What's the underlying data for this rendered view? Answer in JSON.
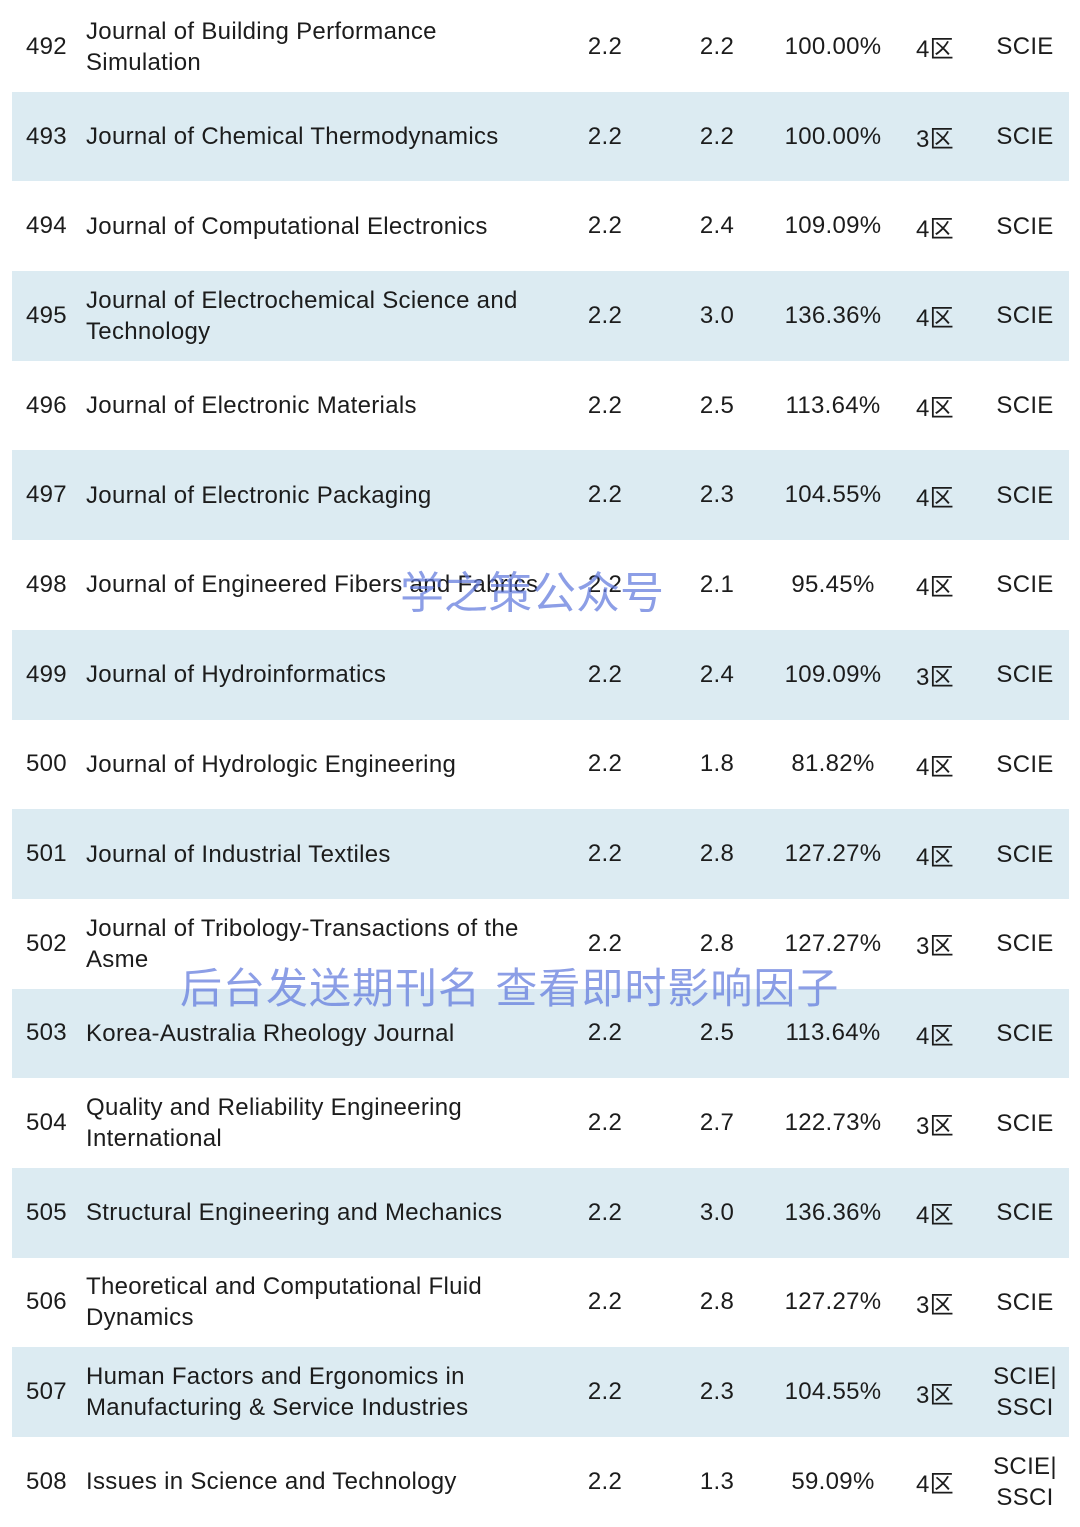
{
  "rows": [
    {
      "rank": "492",
      "name": "Journal of Building Performance Simulation",
      "if": "2.2",
      "pred": "2.2",
      "pct": "100.00%",
      "zone": "4区",
      "index": "SCIE"
    },
    {
      "rank": "493",
      "name": "Journal of Chemical Thermodynamics",
      "if": "2.2",
      "pred": "2.2",
      "pct": "100.00%",
      "zone": "3区",
      "index": "SCIE"
    },
    {
      "rank": "494",
      "name": "Journal of Computational Electronics",
      "if": "2.2",
      "pred": "2.4",
      "pct": "109.09%",
      "zone": "4区",
      "index": "SCIE"
    },
    {
      "rank": "495",
      "name": "Journal of Electrochemical Science and Technology",
      "if": "2.2",
      "pred": "3.0",
      "pct": "136.36%",
      "zone": "4区",
      "index": "SCIE"
    },
    {
      "rank": "496",
      "name": "Journal of Electronic Materials",
      "if": "2.2",
      "pred": "2.5",
      "pct": "113.64%",
      "zone": "4区",
      "index": "SCIE"
    },
    {
      "rank": "497",
      "name": "Journal of Electronic Packaging",
      "if": "2.2",
      "pred": "2.3",
      "pct": "104.55%",
      "zone": "4区",
      "index": "SCIE"
    },
    {
      "rank": "498",
      "name": "Journal of Engineered Fibers and Fabrics",
      "if": "2.2",
      "pred": "2.1",
      "pct": "95.45%",
      "zone": "4区",
      "index": "SCIE"
    },
    {
      "rank": "499",
      "name": "Journal of Hydroinformatics",
      "if": "2.2",
      "pred": "2.4",
      "pct": "109.09%",
      "zone": "3区",
      "index": "SCIE"
    },
    {
      "rank": "500",
      "name": "Journal of Hydrologic Engineering",
      "if": "2.2",
      "pred": "1.8",
      "pct": "81.82%",
      "zone": "4区",
      "index": "SCIE"
    },
    {
      "rank": "501",
      "name": "Journal of Industrial Textiles",
      "if": "2.2",
      "pred": "2.8",
      "pct": "127.27%",
      "zone": "4区",
      "index": "SCIE"
    },
    {
      "rank": "502",
      "name": "Journal of Tribology-Transactions of the Asme",
      "if": "2.2",
      "pred": "2.8",
      "pct": "127.27%",
      "zone": "3区",
      "index": "SCIE"
    },
    {
      "rank": "503",
      "name": "Korea-Australia Rheology Journal",
      "if": "2.2",
      "pred": "2.5",
      "pct": "113.64%",
      "zone": "4区",
      "index": "SCIE"
    },
    {
      "rank": "504",
      "name": "Quality and Reliability Engineering International",
      "if": "2.2",
      "pred": "2.7",
      "pct": "122.73%",
      "zone": "3区",
      "index": "SCIE"
    },
    {
      "rank": "505",
      "name": "Structural Engineering and Mechanics",
      "if": "2.2",
      "pred": "3.0",
      "pct": "136.36%",
      "zone": "4区",
      "index": "SCIE"
    },
    {
      "rank": "506",
      "name": "Theoretical and Computational Fluid Dynamics",
      "if": "2.2",
      "pred": "2.8",
      "pct": "127.27%",
      "zone": "3区",
      "index": "SCIE"
    },
    {
      "rank": "507",
      "name": "Human Factors and Ergonomics in Manufacturing & Service Industries",
      "if": "2.2",
      "pred": "2.3",
      "pct": "104.55%",
      "zone": "3区",
      "index": "SCIE| SSCI"
    },
    {
      "rank": "508",
      "name": "Issues in Science and Technology",
      "if": "2.2",
      "pred": "1.3",
      "pct": "59.09%",
      "zone": "4区",
      "index": "SCIE| SSCI"
    }
  ],
  "watermarks": {
    "top": "学之策公众号",
    "bottom": "后台发送期刊名 查看即时影响因子"
  },
  "colors": {
    "row_shade": "#dcebf2",
    "watermark": "#5f78dc"
  }
}
